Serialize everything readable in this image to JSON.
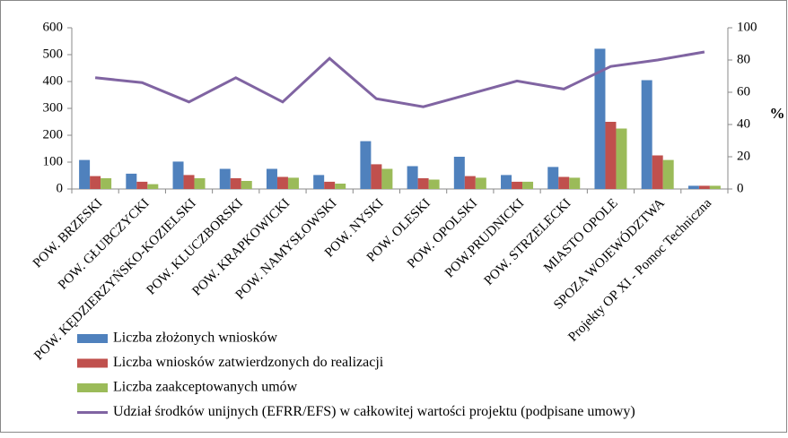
{
  "chart_data": {
    "type": "bar",
    "categories": [
      "POW. BRZESKI",
      "POW. GŁUBCZYCKI",
      "POW. KĘDZIERZYŃSKO-KOZIELSKI",
      "POW. KLUCZBORSKI",
      "POW. KRAPKOWICKI",
      "POW. NAMYSŁOWSKI",
      "POW. NYSKI",
      "POW. OLESKI",
      "POW. OPOLSKI",
      "POW.PRUDNICKI",
      "POW. STRZELECKI",
      "MIASTO OPOLE",
      "SPOZA WOJEWÓDZTWA",
      "Projekty OP XI - Pomoc Techniczna"
    ],
    "series": [
      {
        "name": "Liczba złożonych wniosków",
        "color": "#4f81bd",
        "type": "bar",
        "values": [
          108,
          57,
          102,
          75,
          75,
          52,
          178,
          85,
          120,
          52,
          82,
          522,
          405,
          12
        ]
      },
      {
        "name": "Liczba wniosków zatwierdzonych do realizacji",
        "color": "#c0504d",
        "type": "bar",
        "values": [
          48,
          27,
          52,
          40,
          45,
          27,
          92,
          40,
          48,
          27,
          45,
          250,
          125,
          12
        ]
      },
      {
        "name": "Liczba zaakceptowanych umów",
        "color": "#9bbb59",
        "type": "bar",
        "values": [
          40,
          18,
          40,
          30,
          42,
          20,
          75,
          35,
          42,
          27,
          42,
          225,
          108,
          12
        ]
      },
      {
        "name": "Udział środków unijnych (EFRR/EFS) w całkowitej wartości projektu (podpisane umowy)",
        "color": "#8064a2",
        "type": "line",
        "axis": "y2",
        "values": [
          69,
          66,
          54,
          69,
          54,
          81,
          56,
          51,
          59,
          67,
          62,
          76,
          80,
          85
        ]
      }
    ],
    "y2_label": "%",
    "ylim": [
      0,
      600
    ],
    "yticks": [
      0,
      100,
      200,
      300,
      400,
      500,
      600
    ],
    "y2lim": [
      0,
      100
    ],
    "y2ticks": [
      0,
      20,
      40,
      60,
      80,
      100
    ],
    "grid": false,
    "legend": "bottom-left"
  }
}
